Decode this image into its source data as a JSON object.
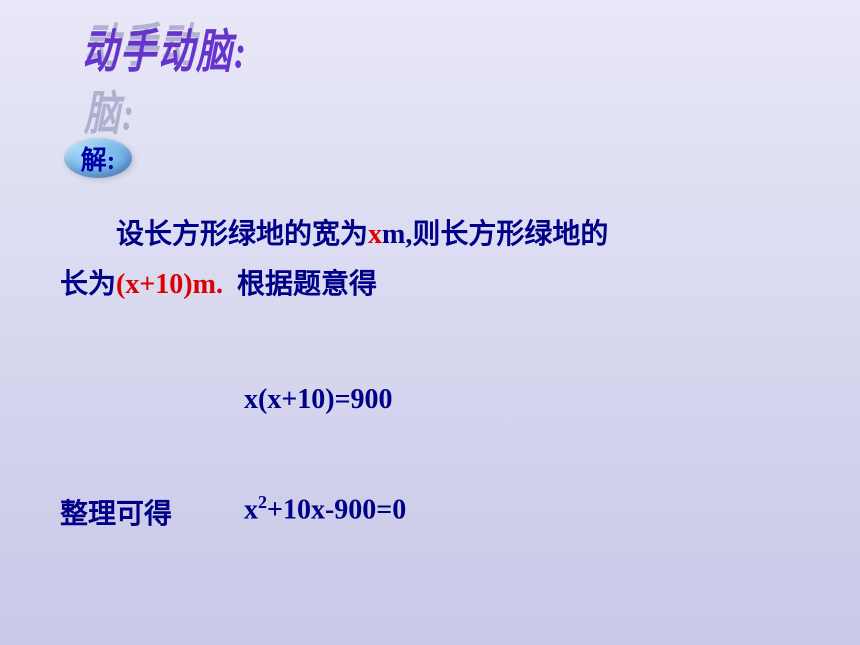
{
  "title": "动手动脑:",
  "solution_label": "解:",
  "paragraph": {
    "line1_prefix": "设长方形绿地的宽为",
    "var_x": "x",
    "unit_m": "m,",
    "line1_suffix": "则长方形绿地的",
    "line2_prefix": "长为",
    "expression": "(x+10)m.",
    "line2_suffix": "根据题意得"
  },
  "equation1": "x(x+10)=900",
  "simplify_label": "整理可得",
  "equation2_part1": "x",
  "equation2_exp": "2",
  "equation2_part2": "+10x-900=0",
  "colors": {
    "background_start": "#e8e8f8",
    "background_end": "#c8c8e8",
    "title_color": "#6633cc",
    "text_color": "#000088",
    "highlight_color": "#dd0000",
    "ellipse_color": "#78b8e8"
  },
  "fonts": {
    "title_size": 36,
    "body_size": 28,
    "title_family": "STXinwei",
    "body_family": "SimSun"
  }
}
